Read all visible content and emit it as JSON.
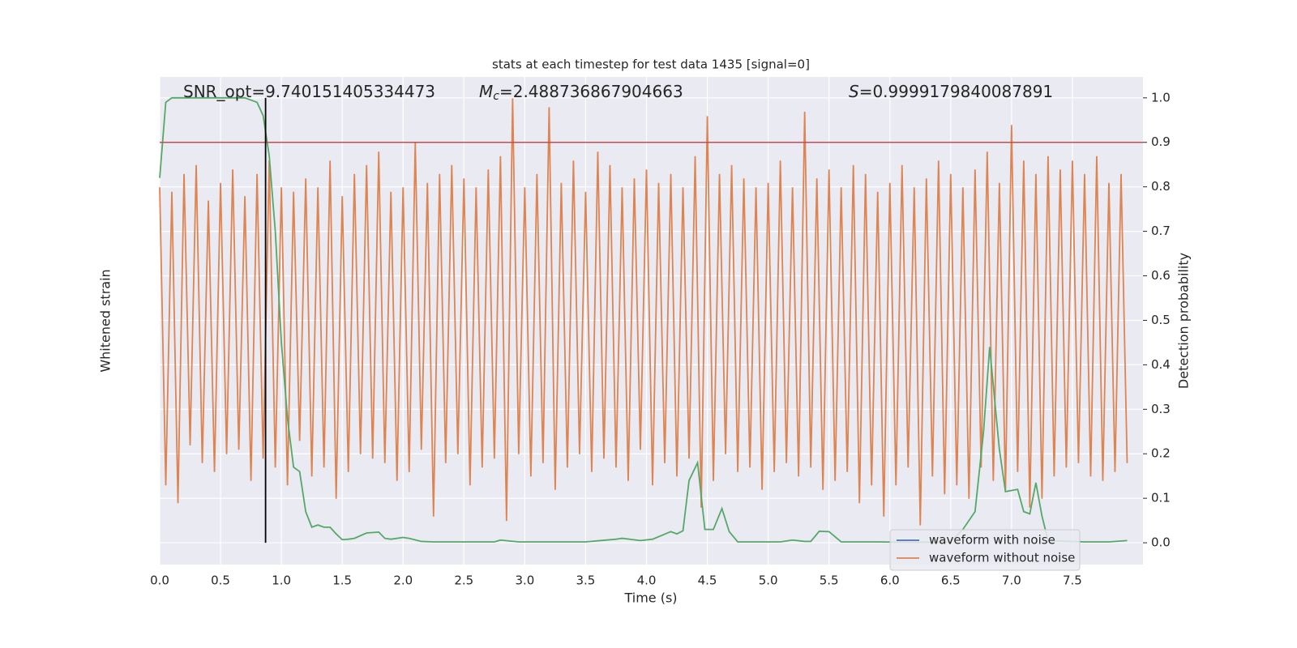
{
  "chart_data": {
    "type": "line",
    "title": "stats at each timestep for test data 1435 [signal=0]",
    "xlabel": "Time (s)",
    "ylabel": "Whitened strain",
    "y2label": "Detection probability",
    "xlim": [
      0,
      8.08
    ],
    "xticks": [
      {
        "value": 0,
        "label": "0.0"
      },
      0.5,
      {
        "value": 1,
        "label": "1.0"
      },
      1.5,
      {
        "value": 2,
        "label": "2.0"
      },
      2.5,
      {
        "value": 3,
        "label": "3.0"
      },
      3.5,
      {
        "value": 4,
        "label": "4.0"
      },
      4.5,
      {
        "value": 5,
        "label": "5.0"
      },
      5.5,
      {
        "value": 6,
        "label": "6.0"
      },
      6.5,
      {
        "value": 7,
        "label": "7.0"
      },
      7.5
    ],
    "ylim": [
      -0.548,
      0.548
    ],
    "y2lim": [
      -0.049,
      1.047
    ],
    "y2ticks": [
      {
        "value": 0,
        "label": "0.0"
      },
      0.1,
      0.2,
      0.3,
      0.4,
      0.5,
      0.6,
      0.7,
      0.8,
      0.9,
      {
        "value": 1,
        "label": "1.0"
      }
    ],
    "grid": true,
    "annotations": [
      {
        "text": "SNR_opt=9.740151405334473"
      },
      {
        "symbol": "M",
        "subscript": "c",
        "text": "=2.488736867904663"
      },
      {
        "symbol": "S",
        "text": "=0.9999179840087891"
      }
    ],
    "threshold": {
      "value": 0.9,
      "color": "#c44e52",
      "axis": "y2"
    },
    "vline": {
      "value": 0.87,
      "color": "#000000"
    },
    "legend": {
      "position": "lower right",
      "entries": [
        {
          "name": "waveform with noise",
          "color": "#4c72b0"
        },
        {
          "name": "waveform without noise",
          "color": "#dd8452"
        }
      ]
    },
    "series": [
      {
        "name": "detection probability",
        "color": "#55a868",
        "axis": "y2",
        "x": [
          0,
          0.05,
          0.1,
          0.2,
          0.3,
          0.4,
          0.5,
          0.6,
          0.7,
          0.8,
          0.85,
          0.9,
          0.95,
          1.0,
          1.05,
          1.1,
          1.15,
          1.2,
          1.25,
          1.3,
          1.35,
          1.4,
          1.45,
          1.5,
          1.55,
          1.6,
          1.7,
          1.8,
          1.85,
          1.9,
          2.0,
          2.05,
          2.15,
          2.25,
          2.5,
          2.75,
          2.8,
          2.95,
          3.25,
          3.5,
          3.75,
          3.8,
          3.95,
          4.05,
          4.2,
          4.25,
          4.3,
          4.35,
          4.42,
          4.48,
          4.55,
          4.62,
          4.68,
          4.75,
          4.9,
          5.1,
          5.2,
          5.3,
          5.35,
          5.42,
          5.5,
          5.6,
          5.9,
          6.2,
          6.5,
          6.6,
          6.7,
          6.77,
          6.82,
          6.9,
          6.95,
          7.05,
          7.1,
          7.15,
          7.2,
          7.25,
          7.3,
          7.6,
          7.8,
          7.95
        ],
        "values": [
          0.82,
          0.99,
          1.0,
          1.0,
          1.0,
          1.0,
          1.0,
          1.0,
          1.0,
          0.99,
          0.96,
          0.87,
          0.7,
          0.45,
          0.28,
          0.17,
          0.16,
          0.07,
          0.035,
          0.04,
          0.035,
          0.035,
          0.02,
          0.007,
          0.008,
          0.01,
          0.022,
          0.024,
          0.01,
          0.008,
          0.012,
          0.01,
          0.003,
          0.002,
          0.002,
          0.002,
          0.006,
          0.002,
          0.002,
          0.002,
          0.008,
          0.01,
          0.005,
          0.008,
          0.025,
          0.02,
          0.027,
          0.14,
          0.18,
          0.03,
          0.03,
          0.077,
          0.025,
          0.002,
          0.002,
          0.002,
          0.006,
          0.003,
          0.003,
          0.026,
          0.025,
          0.002,
          0.002,
          0.001,
          0.002,
          0.03,
          0.07,
          0.25,
          0.44,
          0.21,
          0.115,
          0.12,
          0.07,
          0.065,
          0.135,
          0.06,
          0.005,
          0.002,
          0.002,
          0.005
        ]
      },
      {
        "name": "waveform without noise",
        "color": "#dd8452",
        "axis": "y",
        "x": [
          0,
          0.05,
          0.1,
          0.15,
          0.2,
          0.25,
          0.3,
          0.35,
          0.4,
          0.45,
          0.5,
          0.55,
          0.6,
          0.65,
          0.7,
          0.75,
          0.8,
          0.85,
          0.9,
          0.95,
          1.0,
          1.05,
          1.1,
          1.15,
          1.2,
          1.25,
          1.3,
          1.35,
          1.4,
          1.45,
          1.5,
          1.55,
          1.6,
          1.65,
          1.7,
          1.75,
          1.8,
          1.85,
          1.9,
          1.95,
          2.0,
          2.05,
          2.1,
          2.15,
          2.2,
          2.25,
          2.3,
          2.35,
          2.4,
          2.45,
          2.5,
          2.55,
          2.6,
          2.65,
          2.7,
          2.75,
          2.8,
          2.85,
          2.9,
          2.95,
          3.0,
          3.05,
          3.1,
          3.15,
          3.2,
          3.25,
          3.3,
          3.35,
          3.4,
          3.45,
          3.5,
          3.55,
          3.6,
          3.65,
          3.7,
          3.75,
          3.8,
          3.85,
          3.9,
          3.95,
          4.0,
          4.05,
          4.1,
          4.15,
          4.2,
          4.25,
          4.3,
          4.35,
          4.4,
          4.45,
          4.5,
          4.55,
          4.6,
          4.65,
          4.7,
          4.75,
          4.8,
          4.85,
          4.9,
          4.95,
          5.0,
          5.05,
          5.1,
          5.15,
          5.2,
          5.25,
          5.3,
          5.35,
          5.4,
          5.45,
          5.5,
          5.55,
          5.6,
          5.65,
          5.7,
          5.75,
          5.8,
          5.85,
          5.9,
          5.95,
          6.0,
          6.05,
          6.1,
          6.15,
          6.2,
          6.25,
          6.3,
          6.35,
          6.4,
          6.45,
          6.5,
          6.55,
          6.6,
          6.65,
          6.7,
          6.75,
          6.8,
          6.85,
          6.9,
          6.95,
          7.0,
          7.05,
          7.1,
          7.15,
          7.2,
          7.25,
          7.3,
          7.35,
          7.4,
          7.45,
          7.5,
          7.55,
          7.6,
          7.65,
          7.7,
          7.75,
          7.8,
          7.85,
          7.9,
          7.95
        ],
        "values": [
          0.3,
          -0.37,
          0.29,
          -0.41,
          0.33,
          -0.28,
          0.35,
          -0.32,
          0.27,
          -0.34,
          0.31,
          -0.3,
          0.34,
          -0.29,
          0.28,
          -0.36,
          0.33,
          -0.31,
          0.36,
          -0.33,
          0.3,
          -0.37,
          0.29,
          -0.27,
          0.32,
          -0.35,
          0.3,
          -0.33,
          0.36,
          -0.4,
          0.28,
          -0.34,
          0.33,
          -0.3,
          0.35,
          -0.31,
          0.38,
          -0.32,
          0.29,
          -0.36,
          0.3,
          -0.34,
          0.4,
          -0.29,
          0.31,
          -0.44,
          0.33,
          -0.32,
          0.35,
          -0.3,
          0.32,
          -0.37,
          0.3,
          -0.33,
          0.34,
          -0.31,
          0.37,
          -0.45,
          0.5,
          -0.3,
          0.3,
          -0.35,
          0.33,
          -0.32,
          0.48,
          -0.38,
          0.31,
          -0.33,
          0.36,
          -0.3,
          0.29,
          -0.34,
          0.38,
          -0.31,
          0.35,
          -0.33,
          0.3,
          -0.36,
          0.32,
          -0.29,
          0.34,
          -0.37,
          0.31,
          -0.32,
          0.33,
          -0.35,
          0.3,
          -0.31,
          0.37,
          -0.42,
          0.46,
          -0.36,
          0.33,
          -0.3,
          0.35,
          -0.34,
          0.32,
          -0.33,
          0.3,
          -0.38,
          0.31,
          -0.34,
          0.36,
          -0.32,
          0.3,
          -0.35,
          0.47,
          -0.33,
          0.32,
          -0.38,
          0.34,
          -0.36,
          0.3,
          -0.34,
          0.35,
          -0.41,
          0.33,
          -0.37,
          0.29,
          -0.44,
          0.31,
          -0.37,
          0.35,
          -0.33,
          0.3,
          -0.46,
          0.32,
          -0.35,
          0.36,
          -0.39,
          0.33,
          -0.37,
          0.3,
          -0.4,
          0.34,
          -0.33,
          0.38,
          -0.36,
          0.31,
          -0.38,
          0.44,
          -0.34,
          0.36,
          -0.42,
          0.33,
          -0.4,
          0.37,
          -0.35,
          0.34,
          -0.33,
          0.36,
          -0.32,
          0.33,
          -0.35,
          0.37,
          -0.36,
          0.31,
          -0.34,
          0.33,
          -0.32
        ]
      }
    ]
  }
}
